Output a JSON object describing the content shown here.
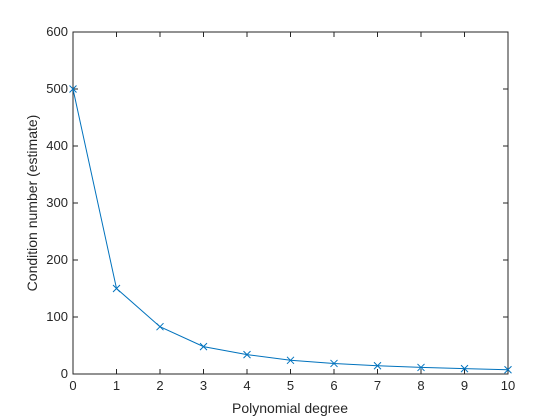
{
  "chart_data": {
    "type": "line",
    "title": "",
    "xlabel": "Polynomial degree",
    "ylabel": "Condition number (estimate)",
    "xlim": [
      0,
      10
    ],
    "ylim": [
      0,
      600
    ],
    "xticks": [
      0,
      1,
      2,
      3,
      4,
      5,
      6,
      7,
      8,
      9,
      10
    ],
    "yticks": [
      0,
      100,
      200,
      300,
      400,
      500,
      600
    ],
    "xtick_labels": [
      "0",
      "1",
      "2",
      "3",
      "4",
      "5",
      "6",
      "7",
      "8",
      "9",
      "10"
    ],
    "ytick_labels": [
      "0",
      "100",
      "200",
      "300",
      "400",
      "500",
      "600"
    ],
    "grid": false,
    "box": true,
    "series": [
      {
        "marker": "x",
        "color": "#0072BD",
        "x": [
          0,
          1,
          2,
          3,
          4,
          5,
          6,
          7,
          8,
          9,
          10
        ],
        "y": [
          500,
          150,
          83,
          48,
          34,
          24,
          18.5,
          14.5,
          11.5,
          9.5,
          7.5
        ]
      }
    ]
  }
}
